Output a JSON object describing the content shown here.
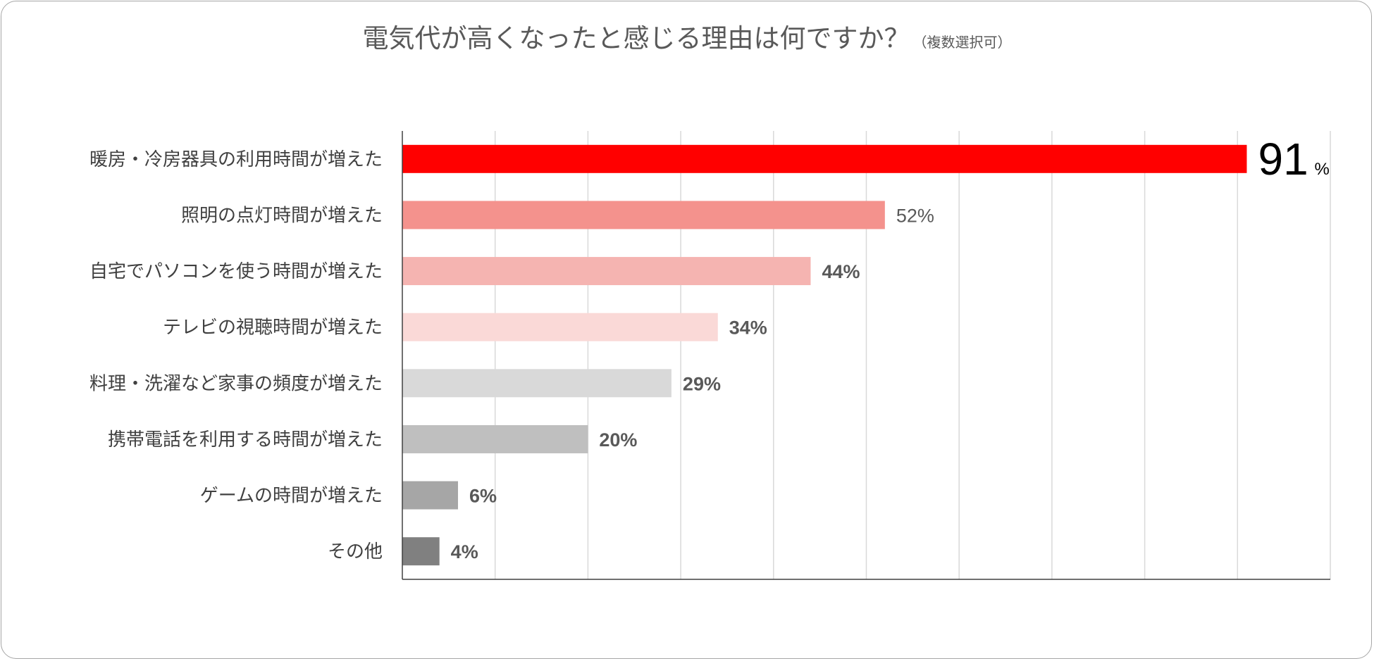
{
  "chart_data": {
    "type": "bar",
    "orientation": "horizontal",
    "title": "電気代が高くなったと感じる理由は何ですか？",
    "subtitle": "（複数選択可）",
    "categories": [
      "暖房・冷房器具の利用時間が増えた",
      "照明の点灯時間が増えた",
      "自宅でパソコンを使う時間が増えた",
      "テレビの視聴時間が増えた",
      "料理・洗濯など家事の頻度が増えた",
      "携帯電話を利用する時間が増えた",
      "ゲームの時間が増えた",
      "その他"
    ],
    "values": [
      91,
      52,
      44,
      34,
      29,
      20,
      6,
      4
    ],
    "value_labels": [
      "91",
      "52%",
      "44%",
      "34%",
      "29%",
      "20%",
      "6%",
      "4%"
    ],
    "highlight_suffix": "%",
    "colors": [
      "#ff0000",
      "#f4928d",
      "#f5b4b1",
      "#fad9d7",
      "#d9d9d9",
      "#bfbfbf",
      "#a6a6a6",
      "#808080"
    ],
    "xlim": [
      0,
      100
    ],
    "grid": true,
    "legend": "none"
  }
}
